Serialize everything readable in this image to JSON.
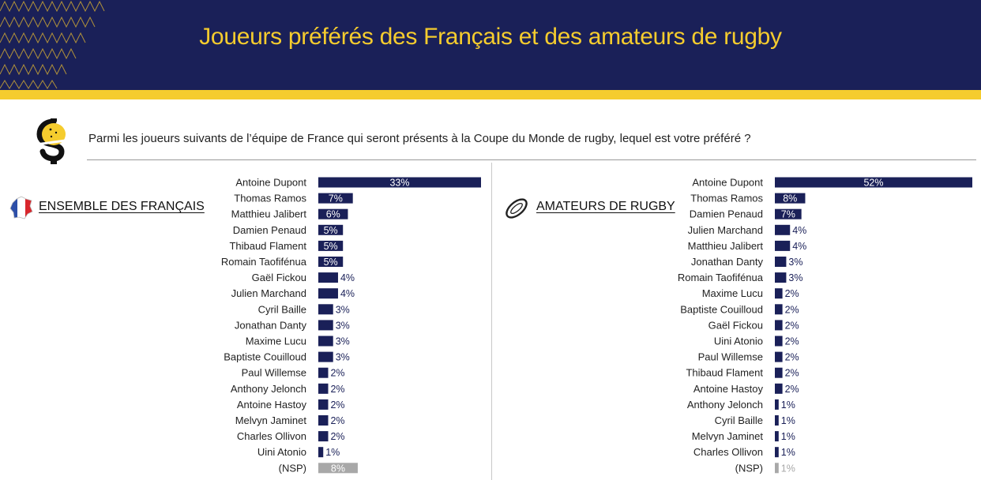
{
  "header": {
    "title": "Joueurs préférés des Français et des amateurs de rugby"
  },
  "question": "Parmi les joueurs suivants de l’équipe de France qui seront présents à la Coupe du Monde de rugby, lequel est votre préféré ?",
  "colors": {
    "header_bg": "#1a2058",
    "accent_yellow": "#f5cc2e",
    "bar": "#1a2058",
    "bar_nsp": "#a8a8a8"
  },
  "icons": {
    "logo": "yellow-black-s-logo-icon",
    "left_panel": "france-map-flag-icon",
    "right_panel": "rugby-ball-icon"
  },
  "chart_data": [
    {
      "type": "bar",
      "orientation": "horizontal",
      "panel_label": "ENSEMBLE DES FRANÇAIS",
      "unit": "%",
      "categories": [
        "Antoine Dupont",
        "Thomas Ramos",
        "Matthieu Jalibert",
        "Damien Penaud",
        "Thibaud Flament",
        "Romain Taofifénua",
        "Gaël Fickou",
        "Julien Marchand",
        "Cyril Baille",
        "Jonathan Danty",
        "Maxime Lucu",
        "Baptiste Couilloud",
        "Paul Willemse",
        "Anthony Jelonch",
        "Antoine Hastoy",
        "Melvyn Jaminet",
        "Charles Ollivon",
        "Uini Atonio",
        "(NSP)"
      ],
      "values": [
        33,
        7,
        6,
        5,
        5,
        5,
        4,
        4,
        3,
        3,
        3,
        3,
        2,
        2,
        2,
        2,
        2,
        1,
        8
      ],
      "value_labels": [
        "33%",
        "7%",
        "6%",
        "5%",
        "5%",
        "5%",
        "4%",
        "4%",
        "3%",
        "3%",
        "3%",
        "3%",
        "2%",
        "2%",
        "2%",
        "2%",
        "2%",
        "1%",
        "8%"
      ]
    },
    {
      "type": "bar",
      "orientation": "horizontal",
      "panel_label": "AMATEURS DE RUGBY",
      "unit": "%",
      "categories": [
        "Antoine Dupont",
        "Thomas Ramos",
        "Damien Penaud",
        "Julien Marchand",
        "Matthieu Jalibert",
        "Jonathan Danty",
        "Romain Taofifénua",
        "Maxime Lucu",
        "Baptiste Couilloud",
        "Gaël Fickou",
        "Uini Atonio",
        "Paul Willemse",
        "Thibaud Flament",
        "Antoine Hastoy",
        "Anthony Jelonch",
        "Cyril Baille",
        "Melvyn Jaminet",
        "Charles Ollivon",
        "(NSP)"
      ],
      "values": [
        52,
        8,
        7,
        4,
        4,
        3,
        3,
        2,
        2,
        2,
        2,
        2,
        2,
        2,
        1,
        1,
        1,
        1,
        1
      ],
      "value_labels": [
        "52%",
        "8%",
        "7%",
        "4%",
        "4%",
        "3%",
        "3%",
        "2%",
        "2%",
        "2%",
        "2%",
        "2%",
        "2%",
        "2%",
        "1%",
        "1%",
        "1%",
        "1%",
        "1%"
      ]
    }
  ]
}
